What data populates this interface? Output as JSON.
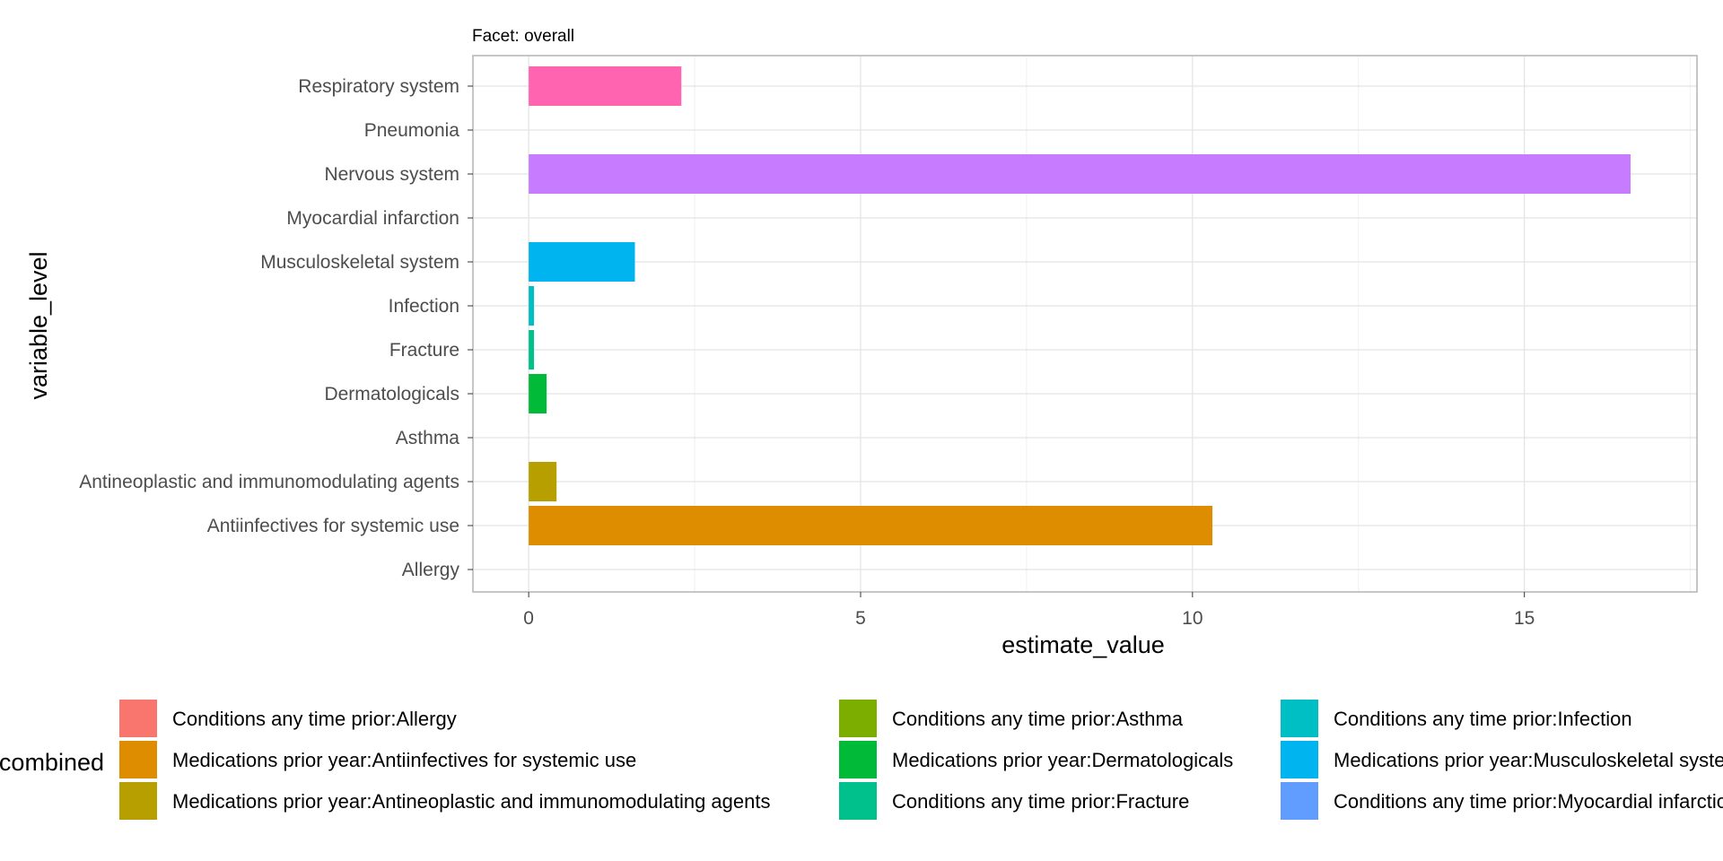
{
  "chart_data": {
    "type": "bar",
    "orientation": "horizontal",
    "facet_label": "Facet: overall",
    "xlabel": "estimate_value",
    "ylabel": "variable_level",
    "xlim": [
      -0.84,
      17.6
    ],
    "x_ticks": [
      0,
      5,
      10,
      15
    ],
    "grid": true,
    "categories": [
      "Allergy",
      "Antiinfectives for systemic use",
      "Antineoplastic and immunomodulating agents",
      "Asthma",
      "Dermatologicals",
      "Fracture",
      "Infection",
      "Musculoskeletal system",
      "Myocardial infarction",
      "Nervous system",
      "Pneumonia",
      "Respiratory system"
    ],
    "bars": [
      {
        "category": "Allergy",
        "value": 0,
        "color": "#F8766D"
      },
      {
        "category": "Antiinfectives for systemic use",
        "value": 10.3,
        "color": "#DE8C00"
      },
      {
        "category": "Antineoplastic and immunomodulating agents",
        "value": 0.42,
        "color": "#B79F00"
      },
      {
        "category": "Asthma",
        "value": 0,
        "color": "#7CAE00"
      },
      {
        "category": "Dermatologicals",
        "value": 0.27,
        "color": "#00BA38"
      },
      {
        "category": "Fracture",
        "value": 0.08,
        "color": "#00C08B"
      },
      {
        "category": "Infection",
        "value": 0.08,
        "color": "#00BFC4"
      },
      {
        "category": "Musculoskeletal system",
        "value": 1.6,
        "color": "#00B4F0"
      },
      {
        "category": "Myocardial infarction",
        "value": 0,
        "color": "#619CFF"
      },
      {
        "category": "Nervous system",
        "value": 16.6,
        "color": "#C77CFF"
      },
      {
        "category": "Pneumonia",
        "value": 0,
        "color": "#F564E3"
      },
      {
        "category": "Respiratory system",
        "value": 2.3,
        "color": "#FF64B0"
      }
    ],
    "legend": {
      "title": "combined",
      "placement": "bottom",
      "columns": [
        [
          {
            "label": "Conditions any time prior:Allergy",
            "color": "#F8766D"
          },
          {
            "label": "Medications prior year:Antiinfectives for systemic use",
            "color": "#DE8C00"
          },
          {
            "label": "Medications prior year:Antineoplastic and immunomodulating agents",
            "color": "#B79F00"
          }
        ],
        [
          {
            "label": "Conditions any time prior:Asthma",
            "color": "#7CAE00"
          },
          {
            "label": "Medications prior year:Dermatologicals",
            "color": "#00BA38"
          },
          {
            "label": "Conditions any time prior:Fracture",
            "color": "#00C08B"
          }
        ],
        [
          {
            "label": "Conditions any time prior:Infection",
            "color": "#00BFC4"
          },
          {
            "label": "Medications prior year:Musculoskeletal system",
            "color": "#00B4F0"
          },
          {
            "label": "Conditions any time prior:Myocardial infarction",
            "color": "#619CFF"
          }
        ]
      ]
    }
  }
}
